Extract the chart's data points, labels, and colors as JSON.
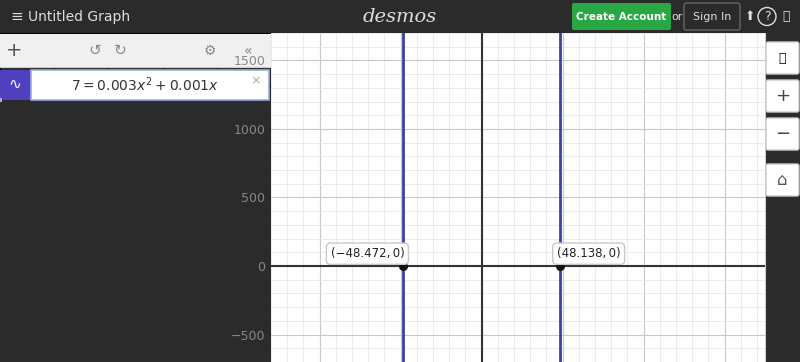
{
  "title": "Untitled Graph",
  "xlim": [
    -125,
    175
  ],
  "ylim": [
    -650,
    1700
  ],
  "xticks": [
    -100,
    -50,
    0,
    50,
    100,
    150
  ],
  "yticks": [
    -500,
    0,
    500,
    1000,
    1500
  ],
  "x_root1": -48.472,
  "x_root2": 48.138,
  "label1": "(−48.472, 0)",
  "label2": "(48.138, 0)",
  "line_color": "#4040a0",
  "bg_color": "#ffffff",
  "grid_major_color": "#c8c8c8",
  "grid_minor_color": "#e4e4e4",
  "axis_color": "#555555",
  "header_bg": "#2b2b2b",
  "header_text": "#dddddd",
  "panel_bg": "#ffffff",
  "panel_toolbar_bg": "#f0f0f0",
  "point_color": "#111111",
  "label_bg": "#ffffff",
  "label_border": "#c8c8c8",
  "right_panel_bg": "#f5f5f5",
  "right_panel_border": "#cccccc",
  "icon_blue": "#5040c0",
  "toolbar_icon_color": "#888888",
  "green_btn": "#28a745",
  "tick_color": "#888888",
  "desmos_text": "#dddddd"
}
